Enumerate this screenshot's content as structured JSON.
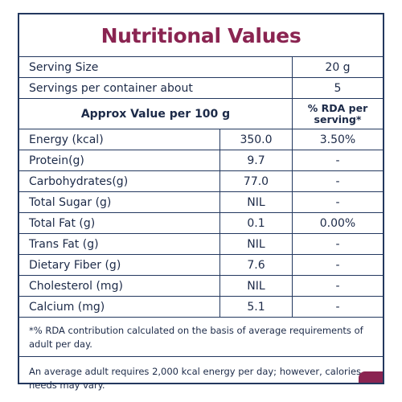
{
  "title": "Nutritional Values",
  "serving": {
    "label": "Serving Size",
    "value": "20 g"
  },
  "servings_per_container": {
    "label": "Servings per container about",
    "value": "5"
  },
  "header": {
    "left": "Approx Value per 100 g",
    "right": "% RDA per serving*"
  },
  "rows": [
    {
      "name": "Energy (kcal)",
      "value": "350.0",
      "rda": "3.50%"
    },
    {
      "name": "Protein(g)",
      "value": "9.7",
      "rda": "-"
    },
    {
      "name": "Carbohydrates(g)",
      "value": "77.0",
      "rda": "-"
    },
    {
      "name": "Total Sugar (g)",
      "value": "NIL",
      "rda": "-"
    },
    {
      "name": "Total Fat (g)",
      "value": "0.1",
      "rda": "0.00%"
    },
    {
      "name": "Trans Fat (g)",
      "value": "NIL",
      "rda": "-"
    },
    {
      "name": "Dietary Fiber (g)",
      "value": "7.6",
      "rda": "-"
    },
    {
      "name": "Cholesterol (mg)",
      "value": "NIL",
      "rda": "-"
    },
    {
      "name": "Calcium (mg)",
      "value": "5.1",
      "rda": "-"
    }
  ],
  "footnote": "*% RDA contribution calculated on the basis of average requirements of adult per day.",
  "note": "An average adult requires 2,000 kcal energy per day; however, calories needs may vary.",
  "colors": {
    "title": "#8a2451",
    "border": "#23385f",
    "text": "#1c2a48"
  }
}
